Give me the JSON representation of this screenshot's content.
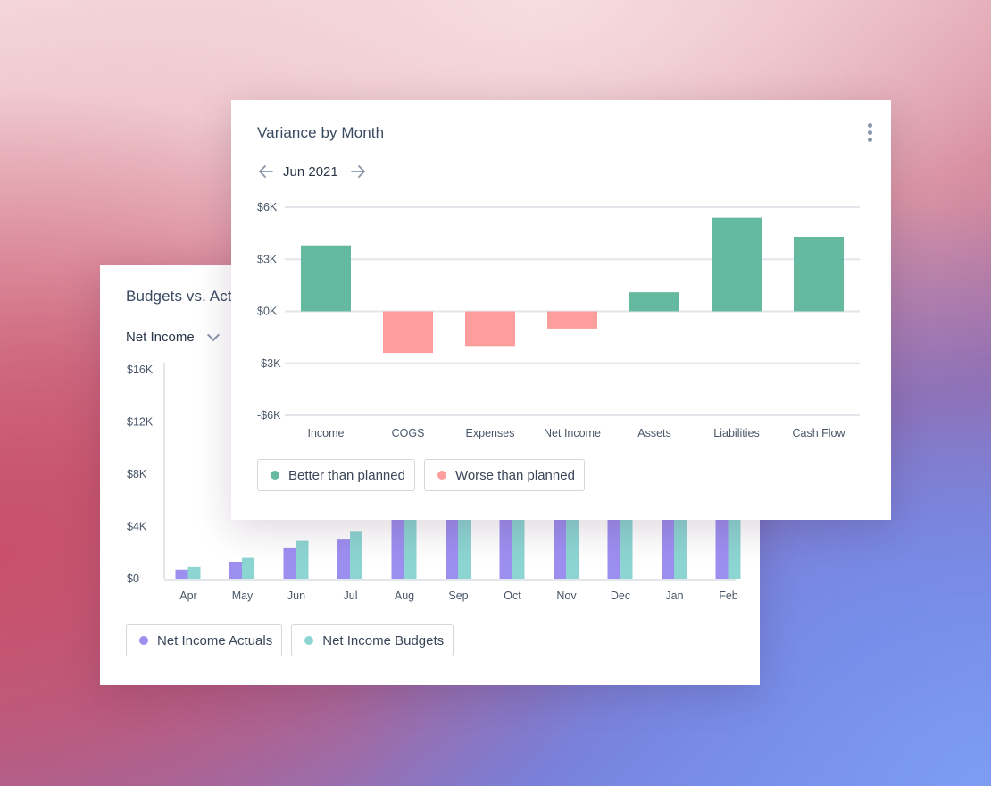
{
  "budget_card": {
    "title": "Budgets vs. Actuals",
    "selector_value": "Net Income",
    "legend": [
      {
        "label": "Net Income Actuals",
        "color": "#9d8ff0"
      },
      {
        "label": "Net Income Budgets",
        "color": "#8dd5d2"
      }
    ]
  },
  "variance_card": {
    "title": "Variance by Month",
    "period": "Jun 2021",
    "legend": [
      {
        "label": "Better than planned",
        "color": "#64b99f"
      },
      {
        "label": "Worse than planned",
        "color": "#fd9e9d"
      }
    ]
  },
  "chart_data": [
    {
      "type": "bar",
      "title": "Variance by Month",
      "categories": [
        "Income",
        "COGS",
        "Expenses",
        "Net Income",
        "Assets",
        "Liabilities",
        "Cash Flow"
      ],
      "values": [
        3.8,
        -2.4,
        -2.0,
        -1.0,
        1.1,
        5.4,
        4.3
      ],
      "y_ticks": [
        "$6K",
        "$3K",
        "$0K",
        "-$3K",
        "-$6K"
      ],
      "ylim": [
        -6,
        6
      ],
      "unit": "$K",
      "colors": {
        "positive": "#64b99f",
        "negative": "#fd9e9d"
      },
      "grid": true
    },
    {
      "type": "bar",
      "title": "Budgets vs. Actuals",
      "categories": [
        "Apr",
        "May",
        "Jun",
        "Jul",
        "Aug",
        "Sep",
        "Oct",
        "Nov",
        "Dec",
        "Jan",
        "Feb"
      ],
      "series": [
        {
          "name": "Net Income Actuals",
          "color": "#9d8ff0",
          "values": [
            0.7,
            1.3,
            2.4,
            3.0,
            4.6,
            4.6,
            4.6,
            4.6,
            4.6,
            4.6,
            4.6
          ]
        },
        {
          "name": "Net Income Budgets",
          "color": "#8dd5d2",
          "values": [
            0.9,
            1.6,
            2.9,
            3.6,
            4.6,
            4.6,
            4.6,
            4.6,
            4.6,
            4.6,
            4.6
          ]
        }
      ],
      "y_ticks": [
        "$16K",
        "$12K",
        "$8K",
        "$4K",
        "$0"
      ],
      "ylim": [
        0,
        16
      ],
      "unit": "$K"
    }
  ]
}
